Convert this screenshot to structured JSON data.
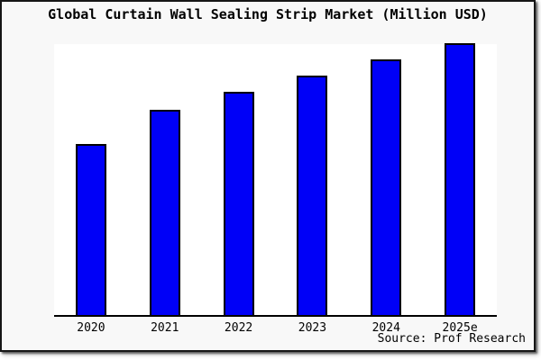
{
  "title_bar": {
    "title": "Global Curtain Wall Sealing Strip Market (Million USD)"
  },
  "source": {
    "label": "Source: Prof Research"
  },
  "colors": {
    "canvas_background": "#ffffff",
    "frame_background": "#f8f8f8",
    "plot_background": "#ffffff",
    "bar_fill": "#0000f7",
    "bar_border": "#000000",
    "axis_line": "#000000",
    "text": "#000000"
  },
  "chart_data": {
    "type": "bar",
    "title": "Global Curtain Wall Sealing Strip Market (Million USD)",
    "categories": [
      "2020",
      "2021",
      "2022",
      "2023",
      "2024",
      "2025e"
    ],
    "values": [
      63,
      75.5,
      82,
      88,
      94,
      100
    ],
    "value_scale": "relative index estimated from bar heights; no y-axis labels shown, normalized to 2025e = 100",
    "xlabel": "",
    "ylabel": "",
    "ylim": [
      0,
      100
    ],
    "grid": false,
    "legend": "none",
    "bar_color": "#0000f7",
    "bar_border_color": "#000000"
  }
}
